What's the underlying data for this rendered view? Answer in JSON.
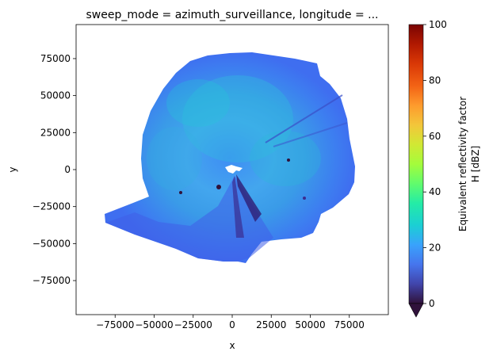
{
  "chart_data": {
    "type": "heatmap",
    "title": "sweep_mode = azimuth_surveillance, longitude = ...",
    "xlabel": "x",
    "ylabel": "y",
    "xlim": [
      -100000,
      100000
    ],
    "ylim": [
      -98000,
      98000
    ],
    "x_ticks": [
      {
        "value": -75000,
        "label": "−75000"
      },
      {
        "value": -50000,
        "label": "−50000"
      },
      {
        "value": -25000,
        "label": "−25000"
      },
      {
        "value": 0,
        "label": "0"
      },
      {
        "value": 25000,
        "label": "25000"
      },
      {
        "value": 50000,
        "label": "50000"
      },
      {
        "value": 75000,
        "label": "75000"
      }
    ],
    "y_ticks": [
      {
        "value": -75000,
        "label": "−75000"
      },
      {
        "value": -50000,
        "label": "−50000"
      },
      {
        "value": -25000,
        "label": "−25000"
      },
      {
        "value": 0,
        "label": "0"
      },
      {
        "value": 25000,
        "label": "25000"
      },
      {
        "value": 50000,
        "label": "50000"
      },
      {
        "value": 75000,
        "label": "75000"
      }
    ],
    "grid": false,
    "colormap": "turbo",
    "colorbar": {
      "label_line1": "Equivalent reflectivity factor",
      "label_line2": "H [dBZ]",
      "range": [
        0,
        100
      ],
      "extend": "min",
      "ticks": [
        0,
        20,
        40,
        60,
        80,
        100
      ]
    },
    "field": {
      "dominant_value_dbz": 20,
      "range_km_approx": 80,
      "description_colors": [
        "#3e6ff2",
        "#4a8cf5",
        "#3cc3dd",
        "#2ab7d8",
        "#30123b"
      ]
    }
  }
}
